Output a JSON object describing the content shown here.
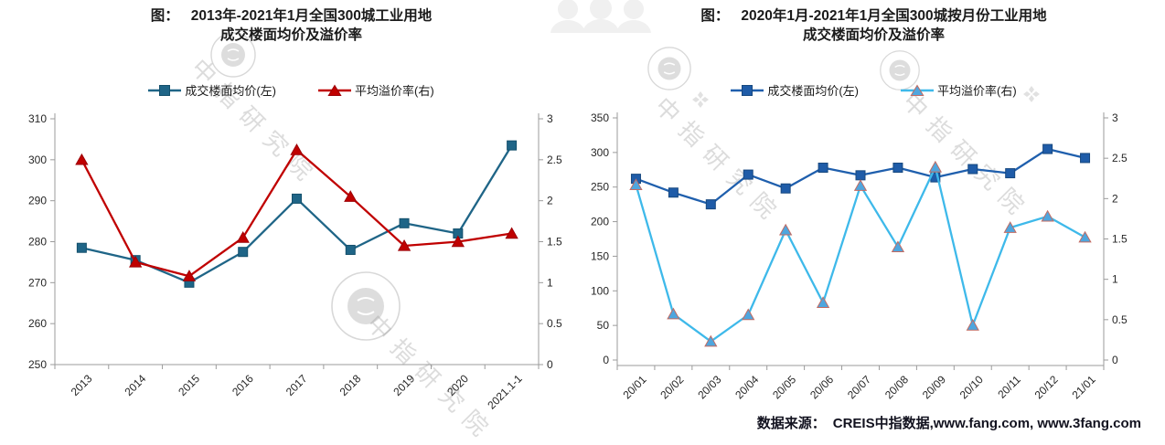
{
  "watermark": {
    "text": "中指研究院",
    "seal_icon": "china-index-academy-seal",
    "people_icon": "people-group",
    "diamond_icon": "diamond-logo"
  },
  "source": {
    "label": "数据来源：",
    "text": "CREIS中指数据,www.fang.com, www.3fang.com"
  },
  "chart_data": [
    {
      "type": "line",
      "title": "图： 2013年-2021年1月全国300城工业用地成交楼面均价及溢价率",
      "title_prefix": "图：",
      "title_line1": "2013年-2021年1月全国300城工业用地",
      "title_line2": "成交楼面均价及溢价率",
      "categories": [
        "2013",
        "2014",
        "2015",
        "2016",
        "2017",
        "2018",
        "2019",
        "2020",
        "2021.1-1"
      ],
      "series": [
        {
          "name": "成交楼面均价(左)",
          "axis": "left",
          "marker": "square",
          "line_color": "#1F6587",
          "marker_fill": "#1F6587",
          "marker_stroke": "#14506C",
          "values": [
            278.5,
            275.5,
            270,
            277.5,
            290.5,
            278,
            284.5,
            282,
            303.5
          ]
        },
        {
          "name": "平均溢价率(右)",
          "axis": "right",
          "marker": "triangle",
          "line_color": "#C00000",
          "marker_fill": "#C00000",
          "marker_stroke": "#9C0006",
          "values": [
            2.5,
            1.25,
            1.08,
            1.55,
            2.62,
            2.05,
            1.45,
            1.5,
            1.6
          ]
        }
      ],
      "y_left": {
        "min": 250,
        "max": 310,
        "step": 10
      },
      "y_right": {
        "min": 0,
        "max": 3,
        "step": 0.5
      },
      "ylabel_left": "",
      "ylabel_right": "",
      "xlabel": "",
      "grid": false,
      "legend_position": "top"
    },
    {
      "type": "line",
      "title": "图： 2020年1月-2021年1月全国300城按月份工业用地成交楼面均价及溢价率",
      "title_prefix": "图：",
      "title_line1": "2020年1月-2021年1月全国300城按月份工业用地",
      "title_line2": "成交楼面均价及溢价率",
      "categories": [
        "20/01",
        "20/02",
        "20/03",
        "20/04",
        "20/05",
        "20/06",
        "20/07",
        "20/08",
        "20/09",
        "20/10",
        "20/11",
        "20/12",
        "21/01"
      ],
      "series": [
        {
          "name": "成交楼面均价(左)",
          "axis": "left",
          "marker": "square",
          "line_color": "#1F5FAD",
          "marker_fill": "#1F5CA8",
          "marker_stroke": "#17487F",
          "values": [
            262,
            242,
            225,
            268,
            248,
            278,
            267,
            278,
            264,
            276,
            270,
            305,
            292
          ]
        },
        {
          "name": "平均溢价率(右)",
          "axis": "right",
          "marker": "triangle",
          "line_color": "#3EB9EA",
          "marker_fill": "#4FA6DE",
          "marker_stroke": "#C26B62",
          "values": [
            2.17,
            0.57,
            0.23,
            0.56,
            1.61,
            0.71,
            2.16,
            1.4,
            2.39,
            0.43,
            1.64,
            1.78,
            1.52
          ]
        }
      ],
      "y_left": {
        "min": 0,
        "max": 350,
        "step": 50
      },
      "y_right": {
        "min": 0,
        "max": 3,
        "step": 0.5
      },
      "ylabel_left": "",
      "ylabel_right": "",
      "xlabel": "",
      "grid": false,
      "legend_position": "top"
    }
  ]
}
